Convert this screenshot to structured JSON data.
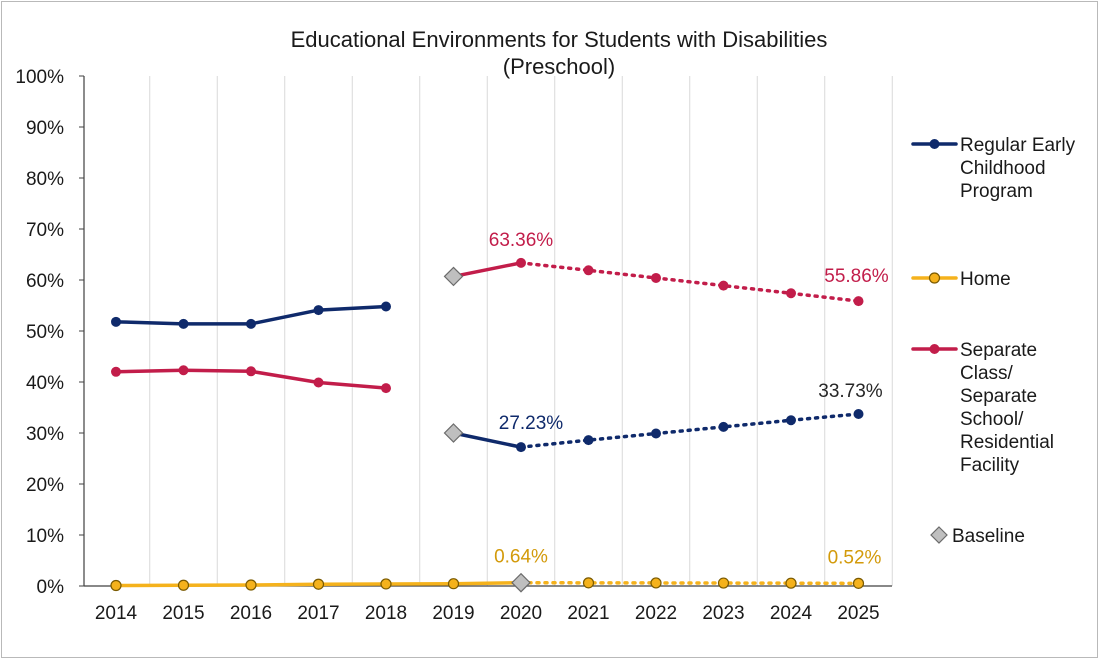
{
  "chart_data": {
    "type": "line",
    "title": "Educational Environments for Students with Disabilities",
    "subtitle": "(Preschool)",
    "xlabel": "",
    "ylabel": "",
    "categories": [
      "2014",
      "2015",
      "2016",
      "2017",
      "2018",
      "2019",
      "2020",
      "2021",
      "2022",
      "2023",
      "2024",
      "2025"
    ],
    "ylim": [
      0,
      100
    ],
    "yticks": [
      "0%",
      "10%",
      "20%",
      "30%",
      "40%",
      "50%",
      "60%",
      "70%",
      "80%",
      "90%",
      "100%"
    ],
    "grid": "vertical",
    "legend_position": "right",
    "series": [
      {
        "key": "regular",
        "name": "Regular Early Childhood Program",
        "name_lines": [
          "Regular Early",
          "Childhood",
          "Program"
        ],
        "color": "#0f2a6b",
        "values": [
          51.8,
          51.4,
          51.4,
          54.1,
          54.8,
          30.0,
          27.23,
          28.6,
          29.9,
          31.2,
          32.5,
          33.73
        ],
        "solid_segments": [
          [
            0,
            4
          ],
          [
            5,
            6
          ]
        ],
        "projection_from": 6,
        "labels": [
          {
            "index": 6,
            "text": "27.23%"
          },
          {
            "index": 11,
            "text": "33.73%",
            "color": "#262626"
          }
        ]
      },
      {
        "key": "home",
        "name": "Home",
        "name_lines": [
          "Home"
        ],
        "color": "#f5b21c",
        "marker_stroke": "#7a5a00",
        "values": [
          0.1,
          0.15,
          0.2,
          0.35,
          0.4,
          0.45,
          0.64,
          0.62,
          0.6,
          0.58,
          0.55,
          0.52
        ],
        "solid_segments": [
          [
            0,
            6
          ]
        ],
        "projection_from": 6,
        "labels": [
          {
            "index": 6,
            "text": "0.64%",
            "color": "#d39a0a"
          },
          {
            "index": 11,
            "text": "0.52%",
            "color": "#d39a0a"
          }
        ]
      },
      {
        "key": "separate",
        "name": "Separate Class/ Separate School/ Residential Facility",
        "name_lines": [
          "Separate",
          "Class/",
          "Separate",
          "School/",
          "Residential",
          "Facility"
        ],
        "color": "#c21d4a",
        "values": [
          42.0,
          42.3,
          42.1,
          39.9,
          38.8,
          60.7,
          63.36,
          61.9,
          60.4,
          58.9,
          57.4,
          55.86
        ],
        "solid_segments": [
          [
            0,
            4
          ],
          [
            5,
            6
          ]
        ],
        "projection_from": 6,
        "labels": [
          {
            "index": 6,
            "text": "63.36%"
          },
          {
            "index": 11,
            "text": "55.86%"
          }
        ]
      }
    ],
    "baseline": {
      "name": "Baseline",
      "color": "#bfbfbf",
      "stroke": "#6b6b6b",
      "points": [
        {
          "index": 5,
          "value": 60.7
        },
        {
          "index": 5,
          "value": 30.0
        },
        {
          "index": 6,
          "value": 0.64
        }
      ]
    }
  }
}
